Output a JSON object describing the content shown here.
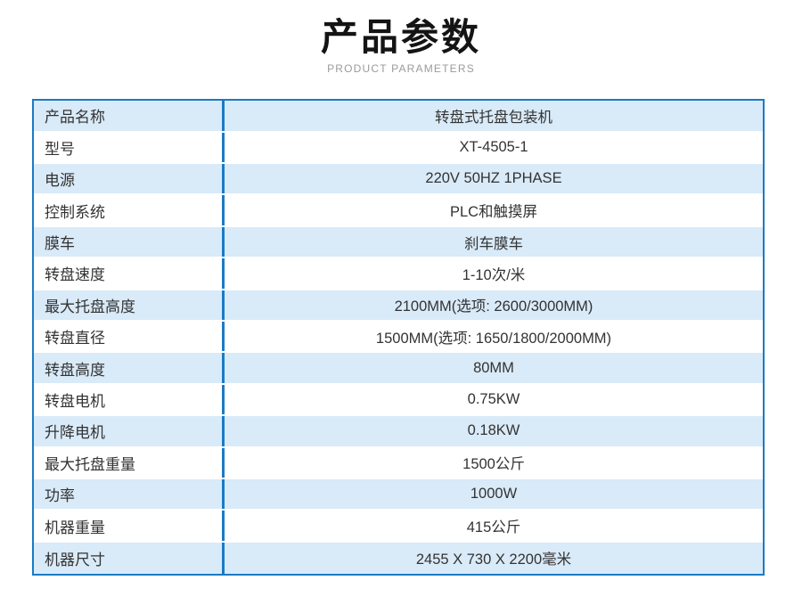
{
  "header": {
    "title": "产品参数",
    "subtitle": "PRODUCT PARAMETERS"
  },
  "colors": {
    "accent_blue": "#1a7bc4",
    "row_highlight_blue": "#d9eaf8",
    "text": "#333333",
    "subtitle_gray": "#9b9b9b"
  },
  "table": {
    "rows": [
      {
        "label": "产品名称",
        "value": "转盘式托盘包装机"
      },
      {
        "label": "型号",
        "value": "XT-4505-1"
      },
      {
        "label": "电源",
        "value": "220V 50HZ 1PHASE"
      },
      {
        "label": "控制系统",
        "value": "PLC和触摸屏"
      },
      {
        "label": "膜车",
        "value": "刹车膜车"
      },
      {
        "label": "转盘速度",
        "value": "1-10次/米"
      },
      {
        "label": "最大托盘高度",
        "value": "2100MM(选项: 2600/3000MM)"
      },
      {
        "label": "转盘直径",
        "value": "1500MM(选项: 1650/1800/2000MM)"
      },
      {
        "label": "转盘高度",
        "value": "80MM"
      },
      {
        "label": "转盘电机",
        "value": "0.75KW"
      },
      {
        "label": "升降电机",
        "value": "0.18KW"
      },
      {
        "label": "最大托盘重量",
        "value": "1500公斤"
      },
      {
        "label": "功率",
        "value": "1000W"
      },
      {
        "label": "机器重量",
        "value": "415公斤"
      },
      {
        "label": "机器尺寸",
        "value": "2455 X 730 X 2200毫米"
      }
    ]
  }
}
